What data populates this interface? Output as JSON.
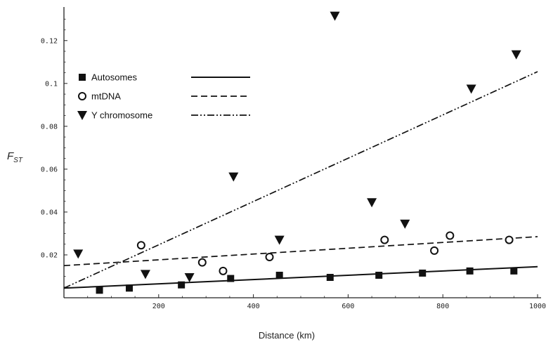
{
  "chart_data": {
    "type": "scatter",
    "title": "",
    "xlabel": "Distance (km)",
    "ylabel_main": "F",
    "ylabel_sub": "ST",
    "xlim": [
      0,
      1000
    ],
    "ylim": [
      0,
      0.135
    ],
    "x_ticks": [
      200,
      400,
      600,
      800,
      1000
    ],
    "x_tick_labels": [
      "200",
      "400",
      "600",
      "800",
      "1000"
    ],
    "y_ticks": [
      0.02,
      0.04,
      0.06,
      0.08,
      0.1,
      0.12
    ],
    "y_tick_labels": [
      "0.02",
      "0.04",
      "0.06",
      "0.08",
      "0.1",
      "0.12"
    ],
    "grid": false,
    "legend_position": "top-left",
    "series": [
      {
        "name": "Autosomes",
        "marker": "filled-square",
        "line_style": "solid",
        "color": "#111111",
        "points": [
          [
            75,
            0.0035
          ],
          [
            138,
            0.0045
          ],
          [
            248,
            0.006
          ],
          [
            352,
            0.009
          ],
          [
            455,
            0.0105
          ],
          [
            562,
            0.0095
          ],
          [
            665,
            0.0105
          ],
          [
            757,
            0.0115
          ],
          [
            857,
            0.0125
          ],
          [
            950,
            0.0125
          ]
        ],
        "fit": [
          [
            0,
            0.0045
          ],
          [
            1000,
            0.0145
          ]
        ]
      },
      {
        "name": "mtDNA",
        "marker": "open-circle",
        "line_style": "dashed",
        "color": "#111111",
        "points": [
          [
            163,
            0.0245
          ],
          [
            292,
            0.0165
          ],
          [
            336,
            0.0125
          ],
          [
            434,
            0.019
          ],
          [
            677,
            0.027
          ],
          [
            782,
            0.022
          ],
          [
            815,
            0.029
          ],
          [
            940,
            0.027
          ]
        ],
        "fit": [
          [
            0,
            0.015
          ],
          [
            1000,
            0.0285
          ]
        ]
      },
      {
        "name": "Y chromosome",
        "marker": "filled-triangle-down",
        "line_style": "dash-dot",
        "color": "#111111",
        "points": [
          [
            30,
            0.0205
          ],
          [
            172,
            0.011
          ],
          [
            265,
            0.0095
          ],
          [
            358,
            0.0565
          ],
          [
            455,
            0.027
          ],
          [
            572,
            0.1315
          ],
          [
            650,
            0.0445
          ],
          [
            720,
            0.0345
          ],
          [
            860,
            0.0975
          ],
          [
            955,
            0.1135
          ]
        ],
        "fit": [
          [
            0,
            0.0045
          ],
          [
            1000,
            0.1055
          ]
        ]
      }
    ]
  }
}
